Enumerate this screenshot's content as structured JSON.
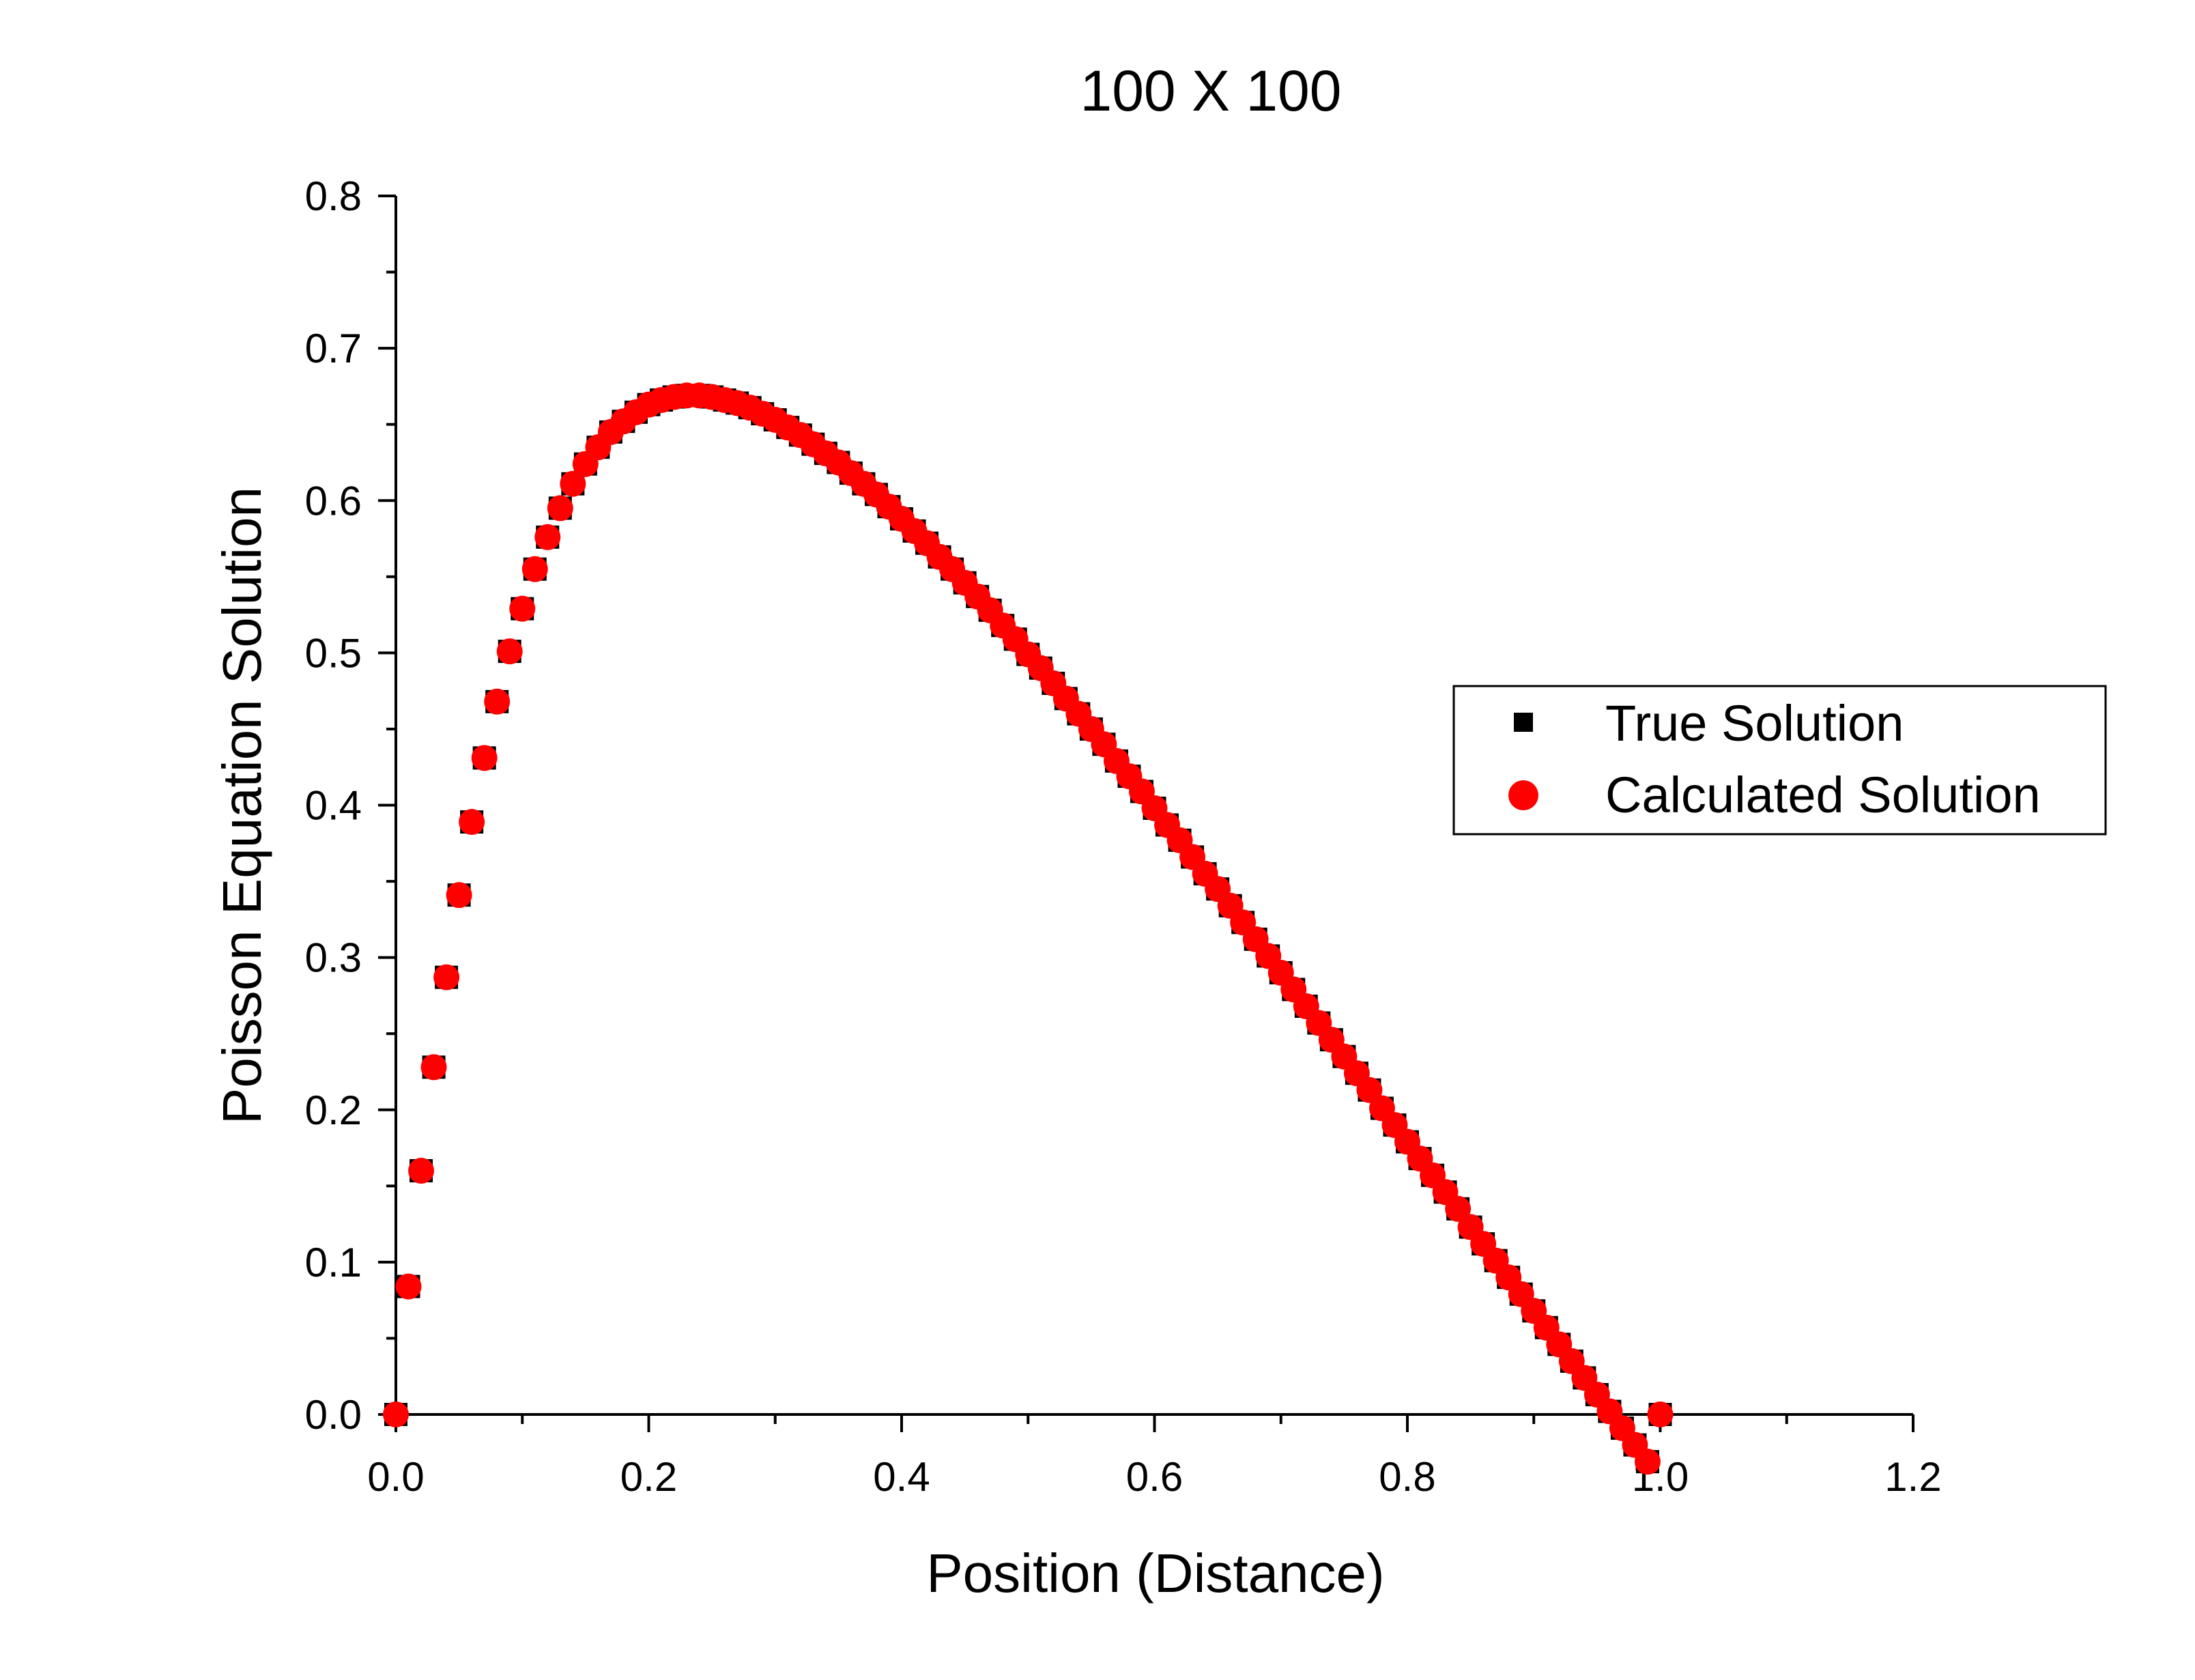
{
  "chart_data": {
    "type": "scatter",
    "title": "100 X 100",
    "xlabel": "Position (Distance)",
    "ylabel": "Poisson Equation Solution",
    "xlim": [
      0,
      1.2
    ],
    "ylim": [
      0,
      0.8
    ],
    "xticks": [
      "0.0",
      "0.2",
      "0.4",
      "0.6",
      "0.8",
      "1.0",
      "1.2"
    ],
    "yticks": [
      "0.0",
      "0.1",
      "0.2",
      "0.3",
      "0.4",
      "0.5",
      "0.6",
      "0.7",
      "0.8"
    ],
    "x_tick_values": [
      0,
      0.2,
      0.4,
      0.6,
      0.8,
      1.0,
      1.2
    ],
    "y_tick_values": [
      0,
      0.1,
      0.2,
      0.3,
      0.4,
      0.5,
      0.6,
      0.7,
      0.8
    ],
    "grid": false,
    "legend_position": "right-middle",
    "x": [
      0.0,
      0.01,
      0.02,
      0.03,
      0.04,
      0.05,
      0.06,
      0.07,
      0.08,
      0.09,
      0.1,
      0.11,
      0.12,
      0.13,
      0.14,
      0.15,
      0.16,
      0.17,
      0.18,
      0.19,
      0.2,
      0.21,
      0.22,
      0.23,
      0.24,
      0.25,
      0.26,
      0.27,
      0.28,
      0.29,
      0.3,
      0.31,
      0.32,
      0.33,
      0.34,
      0.35,
      0.36,
      0.37,
      0.38,
      0.39,
      0.4,
      0.41,
      0.42,
      0.43,
      0.44,
      0.45,
      0.46,
      0.47,
      0.48,
      0.49,
      0.5,
      0.51,
      0.52,
      0.53,
      0.54,
      0.55,
      0.56,
      0.57,
      0.58,
      0.59,
      0.6,
      0.61,
      0.62,
      0.63,
      0.64,
      0.65,
      0.66,
      0.67,
      0.68,
      0.69,
      0.7,
      0.71,
      0.72,
      0.73,
      0.74,
      0.75,
      0.76,
      0.77,
      0.78,
      0.79,
      0.8,
      0.81,
      0.82,
      0.83,
      0.84,
      0.85,
      0.86,
      0.87,
      0.88,
      0.89,
      0.9,
      0.91,
      0.92,
      0.93,
      0.94,
      0.95,
      0.96,
      0.97,
      0.98,
      0.99,
      1.0
    ],
    "series": [
      {
        "name": "True Solution",
        "marker": "square",
        "color": "#000000",
        "values": [
          0.0,
          0.084,
          0.16,
          0.228,
          0.287,
          0.341,
          0.389,
          0.431,
          0.468,
          0.501,
          0.529,
          0.555,
          0.576,
          0.595,
          0.611,
          0.624,
          0.635,
          0.645,
          0.652,
          0.658,
          0.663,
          0.666,
          0.668,
          0.669,
          0.669,
          0.668,
          0.666,
          0.664,
          0.661,
          0.657,
          0.653,
          0.648,
          0.643,
          0.637,
          0.631,
          0.625,
          0.618,
          0.611,
          0.604,
          0.596,
          0.588,
          0.58,
          0.572,
          0.563,
          0.555,
          0.546,
          0.537,
          0.528,
          0.518,
          0.509,
          0.499,
          0.49,
          0.48,
          0.47,
          0.46,
          0.45,
          0.44,
          0.429,
          0.419,
          0.409,
          0.398,
          0.387,
          0.377,
          0.366,
          0.355,
          0.345,
          0.334,
          0.323,
          0.312,
          0.301,
          0.29,
          0.279,
          0.268,
          0.257,
          0.246,
          0.235,
          0.224,
          0.213,
          0.201,
          0.19,
          0.179,
          0.168,
          0.157,
          0.146,
          0.135,
          0.123,
          0.112,
          0.101,
          0.09,
          0.079,
          0.068,
          0.057,
          0.046,
          0.035,
          0.024,
          0.013,
          0.002,
          -0.009,
          -0.02,
          -0.031,
          0.0
        ]
      },
      {
        "name": "Calculated Solution",
        "marker": "circle",
        "color": "#ff0000",
        "values": [
          0.0,
          0.084,
          0.16,
          0.228,
          0.287,
          0.341,
          0.389,
          0.431,
          0.468,
          0.501,
          0.529,
          0.555,
          0.576,
          0.595,
          0.611,
          0.624,
          0.635,
          0.645,
          0.652,
          0.658,
          0.663,
          0.666,
          0.668,
          0.669,
          0.669,
          0.668,
          0.666,
          0.664,
          0.661,
          0.657,
          0.653,
          0.648,
          0.643,
          0.637,
          0.631,
          0.625,
          0.618,
          0.611,
          0.604,
          0.596,
          0.588,
          0.58,
          0.572,
          0.563,
          0.555,
          0.546,
          0.537,
          0.528,
          0.518,
          0.509,
          0.499,
          0.49,
          0.48,
          0.47,
          0.46,
          0.45,
          0.44,
          0.429,
          0.419,
          0.409,
          0.398,
          0.387,
          0.377,
          0.366,
          0.355,
          0.345,
          0.334,
          0.323,
          0.312,
          0.301,
          0.29,
          0.279,
          0.268,
          0.257,
          0.246,
          0.235,
          0.224,
          0.213,
          0.201,
          0.19,
          0.179,
          0.168,
          0.157,
          0.146,
          0.135,
          0.123,
          0.112,
          0.101,
          0.09,
          0.079,
          0.068,
          0.057,
          0.046,
          0.035,
          0.024,
          0.013,
          0.002,
          -0.009,
          -0.02,
          -0.031,
          0.0
        ]
      }
    ]
  }
}
